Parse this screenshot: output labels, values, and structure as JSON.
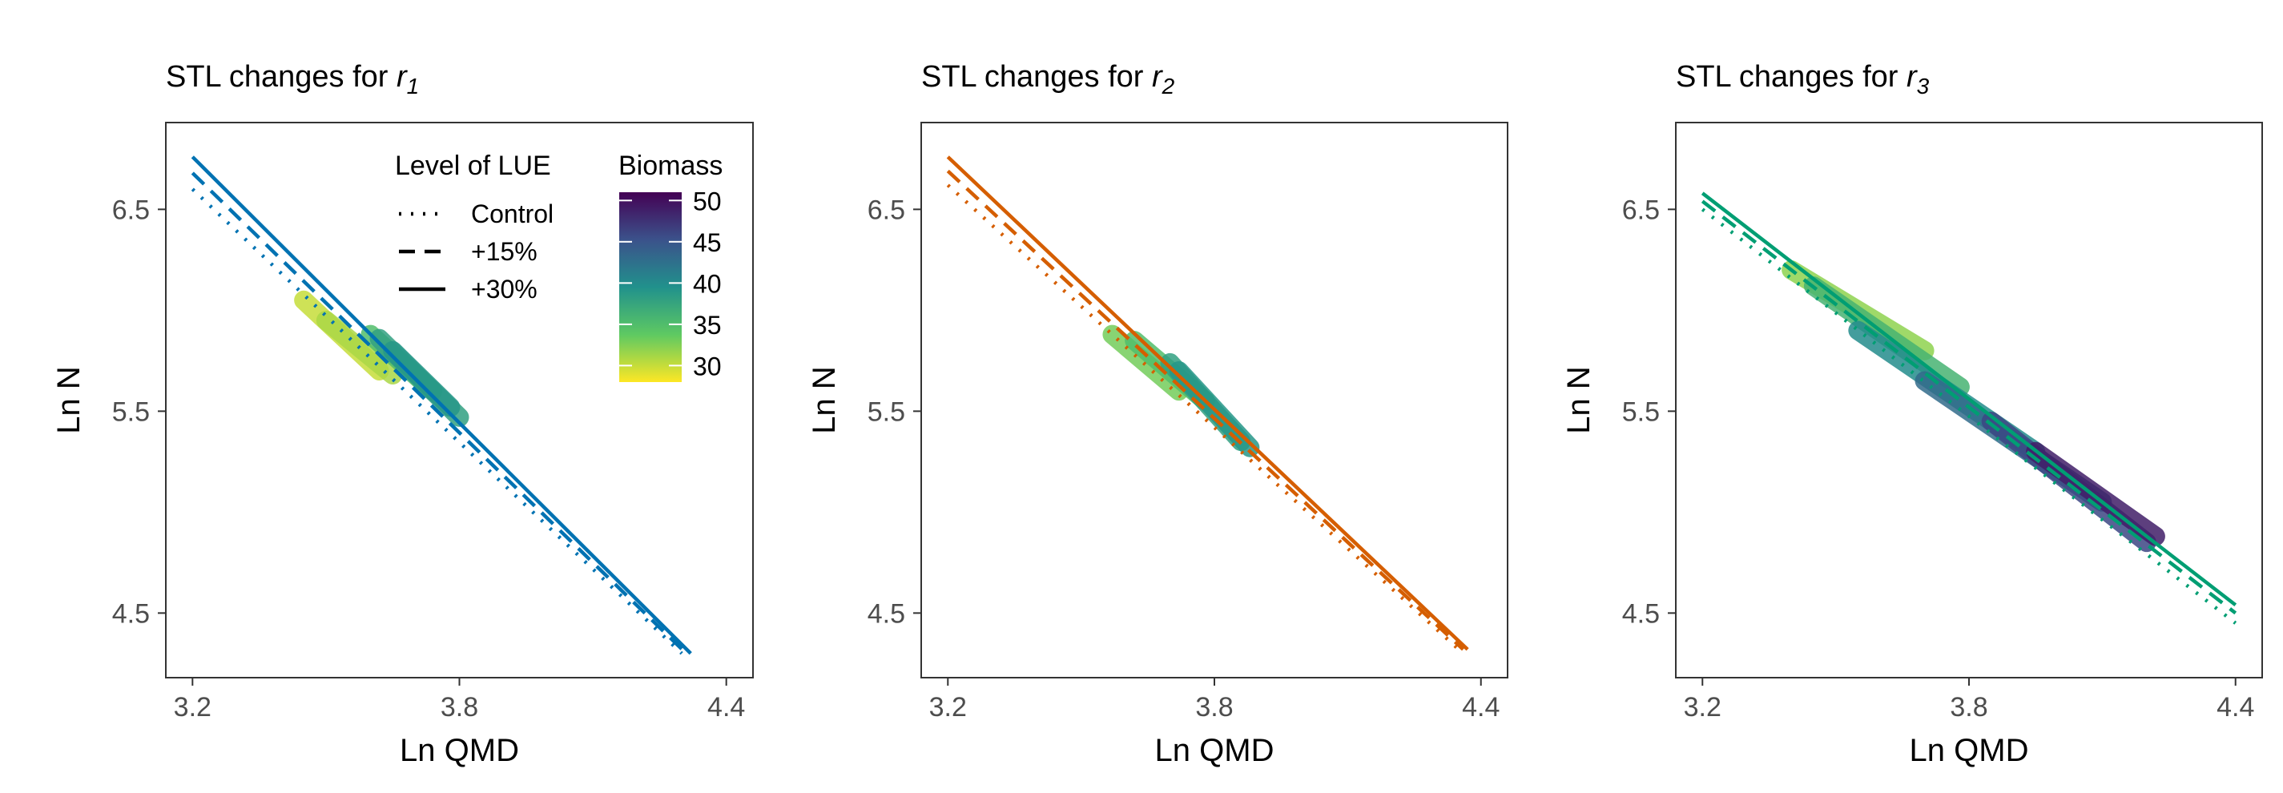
{
  "chart_data": [
    {
      "type": "line",
      "title": "STL changes for ",
      "title_subscript_var": "r",
      "title_subscript": "1",
      "xlabel": "Ln QMD",
      "ylabel": "Ln N",
      "xlim": [
        3.14,
        4.46
      ],
      "ylim": [
        4.18,
        6.93
      ],
      "xticks": [
        3.2,
        3.8,
        4.4
      ],
      "xtick_labels": [
        "3.2",
        "3.8",
        "4.4"
      ],
      "yticks": [
        4.5,
        5.5,
        6.5
      ],
      "ytick_labels": [
        "4.5",
        "5.5",
        "6.5"
      ],
      "color": "#0072B2",
      "series": [
        {
          "name": "Control",
          "linetype": "dotted",
          "x": [
            3.2,
            4.3
          ],
          "y": [
            6.6,
            4.3
          ]
        },
        {
          "name": "+15%",
          "linetype": "dashed",
          "x": [
            3.2,
            4.31
          ],
          "y": [
            6.68,
            4.3
          ]
        },
        {
          "name": "+30%",
          "linetype": "solid",
          "x": [
            3.2,
            4.32
          ],
          "y": [
            6.76,
            4.3
          ]
        }
      ],
      "biomass_bands": [
        {
          "x": [
            3.45,
            3.62
          ],
          "y": [
            6.05,
            5.7
          ],
          "biomass": 30
        },
        {
          "x": [
            3.5,
            3.65
          ],
          "y": [
            5.95,
            5.68
          ],
          "biomass": 31
        },
        {
          "x": [
            3.6,
            3.74
          ],
          "y": [
            5.88,
            5.6
          ],
          "biomass": 35
        },
        {
          "x": [
            3.62,
            3.8
          ],
          "y": [
            5.86,
            5.47
          ],
          "biomass": 38
        },
        {
          "x": [
            3.65,
            3.78
          ],
          "y": [
            5.8,
            5.52
          ],
          "biomass": 39
        }
      ],
      "legends": {
        "linetype_title": "Level of LUE",
        "linetype_entries": [
          "Control",
          "+15%",
          "+30%"
        ],
        "colorbar_title": "Biomass",
        "colorbar_range": [
          28,
          51
        ],
        "colorbar_ticks": [
          50,
          45,
          40,
          35,
          30
        ],
        "colorbar_tick_labels": [
          "50",
          "45",
          "40",
          "35",
          "30"
        ],
        "placement": "inside-top-right"
      }
    },
    {
      "type": "line",
      "title": "STL changes for ",
      "title_subscript_var": "r",
      "title_subscript": "2",
      "xlabel": "Ln QMD",
      "ylabel": "Ln N",
      "xlim": [
        3.14,
        4.46
      ],
      "ylim": [
        4.18,
        6.93
      ],
      "xticks": [
        3.2,
        3.8,
        4.4
      ],
      "xtick_labels": [
        "3.2",
        "3.8",
        "4.4"
      ],
      "yticks": [
        4.5,
        5.5,
        6.5
      ],
      "ytick_labels": [
        "4.5",
        "5.5",
        "6.5"
      ],
      "color": "#D55E00",
      "series": [
        {
          "name": "Control",
          "linetype": "dotted",
          "x": [
            3.2,
            4.35
          ],
          "y": [
            6.62,
            4.32
          ]
        },
        {
          "name": "+15%",
          "linetype": "dashed",
          "x": [
            3.2,
            4.36
          ],
          "y": [
            6.69,
            4.32
          ]
        },
        {
          "name": "+30%",
          "linetype": "solid",
          "x": [
            3.2,
            4.37
          ],
          "y": [
            6.76,
            4.32
          ]
        }
      ],
      "biomass_bands": [
        {
          "x": [
            3.57,
            3.72
          ],
          "y": [
            5.88,
            5.6
          ],
          "biomass": 33
        },
        {
          "x": [
            3.62,
            3.78
          ],
          "y": [
            5.85,
            5.55
          ],
          "biomass": 35
        },
        {
          "x": [
            3.7,
            3.86
          ],
          "y": [
            5.74,
            5.35
          ],
          "biomass": 38
        },
        {
          "x": [
            3.72,
            3.88
          ],
          "y": [
            5.7,
            5.32
          ],
          "biomass": 39
        }
      ]
    },
    {
      "type": "line",
      "title": "STL changes for ",
      "title_subscript_var": "r",
      "title_subscript": "3",
      "xlabel": "Ln QMD",
      "ylabel": "Ln N",
      "xlim": [
        3.14,
        4.46
      ],
      "ylim": [
        4.18,
        6.93
      ],
      "xticks": [
        3.2,
        3.8,
        4.4
      ],
      "xtick_labels": [
        "3.2",
        "3.8",
        "4.4"
      ],
      "yticks": [
        4.5,
        5.5,
        6.5
      ],
      "ytick_labels": [
        "4.5",
        "5.5",
        "6.5"
      ],
      "color": "#009E73",
      "series": [
        {
          "name": "Control",
          "linetype": "dotted",
          "x": [
            3.2,
            4.4
          ],
          "y": [
            6.5,
            4.45
          ]
        },
        {
          "name": "+15%",
          "linetype": "dashed",
          "x": [
            3.2,
            4.4
          ],
          "y": [
            6.54,
            4.5
          ]
        },
        {
          "name": "+30%",
          "linetype": "solid",
          "x": [
            3.2,
            4.4
          ],
          "y": [
            6.58,
            4.54
          ]
        }
      ],
      "biomass_bands": [
        {
          "x": [
            3.4,
            3.7
          ],
          "y": [
            6.2,
            5.8
          ],
          "biomass": 32
        },
        {
          "x": [
            3.45,
            3.78
          ],
          "y": [
            6.12,
            5.62
          ],
          "biomass": 36
        },
        {
          "x": [
            3.55,
            3.95
          ],
          "y": [
            5.9,
            5.3
          ],
          "biomass": 40
        },
        {
          "x": [
            3.7,
            4.1
          ],
          "y": [
            5.65,
            5.05
          ],
          "biomass": 43
        },
        {
          "x": [
            3.85,
            4.2
          ],
          "y": [
            5.45,
            4.85
          ],
          "biomass": 46
        },
        {
          "x": [
            3.95,
            4.22
          ],
          "y": [
            5.3,
            4.88
          ],
          "biomass": 49
        }
      ]
    }
  ]
}
